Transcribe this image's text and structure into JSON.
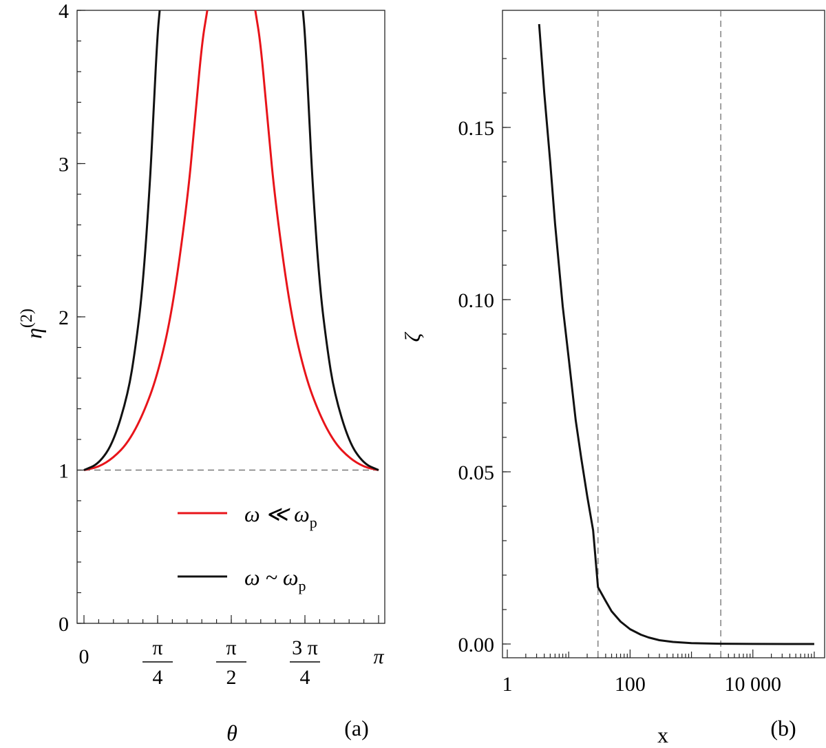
{
  "chart_data": [
    {
      "type": "line",
      "panel_label": "(a)",
      "xlabel": "θ",
      "ylabel_base": "η",
      "ylabel_sup": "(2)",
      "xlim": [
        0,
        3.14159
      ],
      "ylim": [
        0,
        4
      ],
      "yticks": [
        {
          "value": 0,
          "label": "0"
        },
        {
          "value": 1,
          "label": "1"
        },
        {
          "value": 2,
          "label": "2"
        },
        {
          "value": 3,
          "label": "3"
        },
        {
          "value": 4,
          "label": "4"
        }
      ],
      "xticks": [
        {
          "value": 0,
          "label": "0"
        },
        {
          "value": 0.7854,
          "num": "π",
          "den": "4"
        },
        {
          "value": 1.5708,
          "num": "π",
          "den": "2"
        },
        {
          "value": 2.3562,
          "num": "3 π",
          "den": "4"
        },
        {
          "value": 3.14159,
          "label": "π"
        }
      ],
      "reference_line": {
        "y": 1,
        "style": "dashed",
        "color": "#777777"
      },
      "series": [
        {
          "name": "ω ≪ ω_p",
          "legend_main": "ω ≪ ω",
          "legend_sub": "p",
          "color": "#e8141a",
          "x": [
            0.0,
            0.157,
            0.314,
            0.471,
            0.628,
            0.785,
            0.942,
            1.099,
            1.178,
            1.256,
            1.315,
            1.8267,
            1.885,
            1.963,
            2.042,
            2.199,
            2.356,
            2.513,
            2.67,
            2.827,
            2.985,
            3.1416
          ],
          "y": [
            1.0,
            1.02,
            1.08,
            1.18,
            1.36,
            1.62,
            2.04,
            2.74,
            3.24,
            3.78,
            4.0,
            4.0,
            3.78,
            3.24,
            2.74,
            2.04,
            1.62,
            1.36,
            1.18,
            1.08,
            1.02,
            1.0
          ]
        },
        {
          "name": "ω ~ ω_p",
          "legend_main": "ω ~ ω",
          "legend_sub": "p",
          "color": "#111111",
          "x": [
            0.0,
            0.157,
            0.314,
            0.471,
            0.55,
            0.628,
            0.707,
            0.746,
            0.785,
            0.8075,
            2.334,
            2.356,
            2.395,
            2.434,
            2.513,
            2.592,
            2.67,
            2.827,
            2.985,
            3.1416
          ],
          "y": [
            1.0,
            1.04,
            1.18,
            1.5,
            1.8,
            2.2,
            2.9,
            3.4,
            3.85,
            4.0,
            4.0,
            3.85,
            3.4,
            2.9,
            2.2,
            1.8,
            1.5,
            1.18,
            1.04,
            1.0
          ]
        }
      ]
    },
    {
      "type": "line",
      "panel_label": "(b)",
      "xlabel": "x",
      "ylabel": "ζ",
      "xscale": "log",
      "xlim": [
        1,
        120000
      ],
      "ylim": [
        -0.004,
        0.184
      ],
      "yticks": [
        {
          "value": 0.0,
          "label": "0.00"
        },
        {
          "value": 0.05,
          "label": "0.05"
        },
        {
          "value": 0.1,
          "label": "0.10"
        },
        {
          "value": 0.15,
          "label": "0.15"
        }
      ],
      "xticks": [
        {
          "value": 1,
          "label": "1"
        },
        {
          "value": 100,
          "label": "100"
        },
        {
          "value": 10000,
          "label": "10 000"
        }
      ],
      "reference_lines_x": [
        30,
        3000
      ],
      "series": [
        {
          "name": "ζ(x)",
          "color": "#111111",
          "x": [
            3.3,
            4,
            5,
            6,
            8,
            10,
            13,
            16,
            20,
            25,
            30,
            40,
            50,
            70,
            100,
            150,
            200,
            300,
            500,
            1000,
            3000,
            10000,
            100000
          ],
          "y": [
            0.18,
            0.16,
            0.14,
            0.122,
            0.098,
            0.083,
            0.065,
            0.054,
            0.043,
            0.033,
            0.0165,
            0.0125,
            0.0095,
            0.0065,
            0.0043,
            0.0027,
            0.0019,
            0.0011,
            0.0006,
            0.00025,
            8e-05,
            2e-05,
            0.0
          ]
        }
      ]
    }
  ]
}
